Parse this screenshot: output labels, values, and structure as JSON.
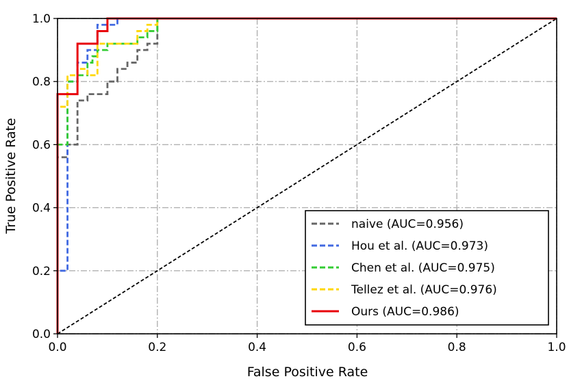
{
  "chart_data": {
    "type": "line",
    "title": "",
    "xlabel": "False Positive Rate",
    "ylabel": "True Positive Rate",
    "xlim": [
      0.0,
      1.0
    ],
    "ylim": [
      0.0,
      1.0
    ],
    "xticks": [
      0.0,
      0.2,
      0.4,
      0.6,
      0.8,
      1.0
    ],
    "yticks": [
      0.0,
      0.2,
      0.4,
      0.6,
      0.8,
      1.0
    ],
    "xtick_labels": [
      "0.0",
      "0.2",
      "0.4",
      "0.6",
      "0.8",
      "1.0"
    ],
    "ytick_labels": [
      "0.0",
      "0.2",
      "0.4",
      "0.6",
      "0.8",
      "1.0"
    ],
    "grid": true,
    "legend_position": "bottom-right",
    "diagonal": {
      "name": "chance",
      "color": "#000000",
      "style": "dashed",
      "points": [
        [
          0,
          0
        ],
        [
          1,
          1
        ]
      ]
    },
    "series": [
      {
        "name": "naive",
        "label": "naive (AUC=0.956)",
        "auc": 0.956,
        "color": "#666666",
        "style": "dashed",
        "points": [
          [
            0,
            0
          ],
          [
            0,
            0.56
          ],
          [
            0.02,
            0.56
          ],
          [
            0.02,
            0.6
          ],
          [
            0.04,
            0.6
          ],
          [
            0.04,
            0.74
          ],
          [
            0.06,
            0.74
          ],
          [
            0.06,
            0.76
          ],
          [
            0.1,
            0.76
          ],
          [
            0.1,
            0.8
          ],
          [
            0.12,
            0.8
          ],
          [
            0.12,
            0.84
          ],
          [
            0.14,
            0.84
          ],
          [
            0.14,
            0.86
          ],
          [
            0.16,
            0.86
          ],
          [
            0.16,
            0.9
          ],
          [
            0.18,
            0.9
          ],
          [
            0.18,
            0.92
          ],
          [
            0.2,
            0.92
          ],
          [
            0.2,
            1.0
          ],
          [
            1.0,
            1.0
          ]
        ]
      },
      {
        "name": "Hou et al.",
        "label": "Hou et al. (AUC=0.973)",
        "auc": 0.973,
        "color": "#4169e1",
        "style": "dashed",
        "points": [
          [
            0,
            0
          ],
          [
            0,
            0.2
          ],
          [
            0.02,
            0.2
          ],
          [
            0.02,
            0.8
          ],
          [
            0.04,
            0.8
          ],
          [
            0.04,
            0.86
          ],
          [
            0.06,
            0.86
          ],
          [
            0.06,
            0.9
          ],
          [
            0.08,
            0.9
          ],
          [
            0.08,
            0.98
          ],
          [
            0.12,
            0.98
          ],
          [
            0.12,
            1.0
          ],
          [
            1.0,
            1.0
          ]
        ]
      },
      {
        "name": "Chen et al.",
        "label": "Chen et al. (AUC=0.975)",
        "auc": 0.975,
        "color": "#33cc33",
        "style": "dashed",
        "points": [
          [
            0,
            0
          ],
          [
            0,
            0.6
          ],
          [
            0.02,
            0.6
          ],
          [
            0.02,
            0.8
          ],
          [
            0.04,
            0.8
          ],
          [
            0.04,
            0.82
          ],
          [
            0.06,
            0.82
          ],
          [
            0.06,
            0.86
          ],
          [
            0.07,
            0.86
          ],
          [
            0.07,
            0.88
          ],
          [
            0.08,
            0.88
          ],
          [
            0.08,
            0.9
          ],
          [
            0.1,
            0.9
          ],
          [
            0.1,
            0.92
          ],
          [
            0.16,
            0.92
          ],
          [
            0.16,
            0.94
          ],
          [
            0.18,
            0.94
          ],
          [
            0.18,
            0.96
          ],
          [
            0.2,
            0.96
          ],
          [
            0.2,
            0.98
          ],
          [
            0.2,
            1.0
          ],
          [
            1.0,
            1.0
          ]
        ]
      },
      {
        "name": "Tellez et al.",
        "label": "Tellez et al. (AUC=0.976)",
        "auc": 0.976,
        "color": "#ffd700",
        "style": "dashed",
        "points": [
          [
            0,
            0
          ],
          [
            0,
            0.72
          ],
          [
            0.02,
            0.72
          ],
          [
            0.02,
            0.82
          ],
          [
            0.04,
            0.82
          ],
          [
            0.04,
            0.84
          ],
          [
            0.06,
            0.84
          ],
          [
            0.06,
            0.82
          ],
          [
            0.08,
            0.82
          ],
          [
            0.08,
            0.92
          ],
          [
            0.16,
            0.92
          ],
          [
            0.16,
            0.96
          ],
          [
            0.18,
            0.96
          ],
          [
            0.18,
            0.98
          ],
          [
            0.2,
            0.98
          ],
          [
            0.2,
            1.0
          ],
          [
            1.0,
            1.0
          ]
        ]
      },
      {
        "name": "Ours",
        "label": "Ours (AUC=0.986)",
        "auc": 0.986,
        "color": "#e8000b",
        "style": "solid",
        "points": [
          [
            0,
            0
          ],
          [
            0,
            0.76
          ],
          [
            0.04,
            0.76
          ],
          [
            0.04,
            0.92
          ],
          [
            0.08,
            0.92
          ],
          [
            0.08,
            0.96
          ],
          [
            0.1,
            0.96
          ],
          [
            0.1,
            1.0
          ],
          [
            1.0,
            1.0
          ]
        ]
      }
    ]
  }
}
